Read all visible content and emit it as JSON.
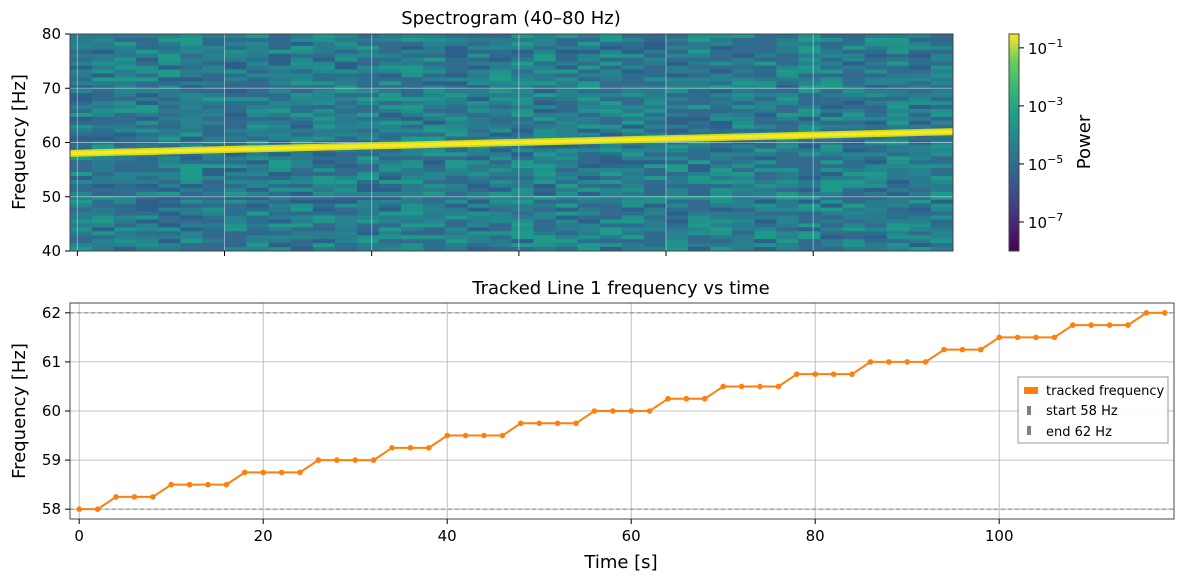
{
  "chart_data": [
    {
      "type": "heatmap",
      "title": "Spectrogram (40–80 Hz)",
      "xlabel": "",
      "ylabel": "Frequency [Hz]",
      "xlim": [
        -1,
        119
      ],
      "ylim": [
        40,
        80
      ],
      "yticks": [
        "40",
        "50",
        "60",
        "70",
        "80"
      ],
      "xticks": [
        0,
        20,
        40,
        60,
        80,
        100
      ],
      "grid": true,
      "colormap": "viridis",
      "line": {
        "x": [
          -1,
          119
        ],
        "y": [
          58,
          62
        ]
      },
      "colorbar": {
        "label": "Power",
        "scale": "log",
        "ticks": [
          {
            "base": "10",
            "exp": "−1",
            "value": 0.1
          },
          {
            "base": "10",
            "exp": "−3",
            "value": 0.001
          },
          {
            "base": "10",
            "exp": "−5",
            "value": 1e-05
          },
          {
            "base": "10",
            "exp": "−7",
            "value": 1e-07
          }
        ],
        "range": [
          1e-08,
          0.3
        ]
      }
    },
    {
      "type": "line",
      "title": "Tracked Line 1 frequency vs time",
      "xlabel": "Time [s]",
      "ylabel": "Frequency [Hz]",
      "xlim": [
        -1,
        119
      ],
      "ylim": [
        57.8,
        62.2
      ],
      "xticks": [
        "0",
        "20",
        "40",
        "60",
        "80",
        "100"
      ],
      "yticks": [
        "58",
        "59",
        "60",
        "61",
        "62"
      ],
      "grid": true,
      "legend_position": "center-right",
      "series": [
        {
          "name": "tracked frequency",
          "color": "#ff7f0e",
          "x": [
            0,
            2,
            4,
            6,
            8,
            10,
            12,
            14,
            16,
            18,
            20,
            22,
            24,
            26,
            28,
            30,
            32,
            34,
            36,
            38,
            40,
            42,
            44,
            46,
            48,
            50,
            52,
            54,
            56,
            58,
            60,
            62,
            64,
            66,
            68,
            70,
            72,
            74,
            76,
            78,
            80,
            82,
            84,
            86,
            88,
            90,
            92,
            94,
            96,
            98,
            100,
            102,
            104,
            106,
            108,
            110,
            112,
            114,
            116,
            118
          ],
          "y": [
            58.0,
            58.0,
            58.25,
            58.25,
            58.25,
            58.5,
            58.5,
            58.5,
            58.5,
            58.75,
            58.75,
            58.75,
            58.75,
            59.0,
            59.0,
            59.0,
            59.0,
            59.25,
            59.25,
            59.25,
            59.5,
            59.5,
            59.5,
            59.5,
            59.75,
            59.75,
            59.75,
            59.75,
            60.0,
            60.0,
            60.0,
            60.0,
            60.25,
            60.25,
            60.25,
            60.5,
            60.5,
            60.5,
            60.5,
            60.75,
            60.75,
            60.75,
            60.75,
            61.0,
            61.0,
            61.0,
            61.0,
            61.25,
            61.25,
            61.25,
            61.5,
            61.5,
            61.5,
            61.5,
            61.75,
            61.75,
            61.75,
            61.75,
            62.0,
            62.0
          ]
        }
      ],
      "reference_lines": [
        {
          "name": "start 58 Hz",
          "y": 58,
          "color": "#808080"
        },
        {
          "name": "end 62 Hz",
          "y": 62,
          "color": "#808080"
        }
      ]
    }
  ]
}
